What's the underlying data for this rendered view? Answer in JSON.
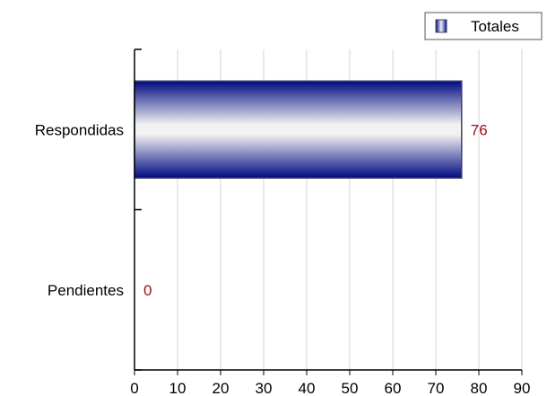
{
  "chart_data": {
    "type": "bar",
    "orientation": "horizontal",
    "categories": [
      "Respondidas",
      "Pendientes"
    ],
    "series": [
      {
        "name": "Totales",
        "values": [
          76,
          0
        ]
      }
    ],
    "xlim": [
      0,
      90
    ],
    "x_ticks": [
      0,
      10,
      20,
      30,
      40,
      50,
      60,
      70,
      80,
      90
    ],
    "grid": "vertical",
    "legend_position": "top-right",
    "colors": {
      "bar_dark": "#000a80",
      "bar_light": "#f2f2f2",
      "bar_edge": "#40406a",
      "data_label": "#a01010",
      "grid": "#d4d4d4",
      "axis": "#000000"
    }
  }
}
